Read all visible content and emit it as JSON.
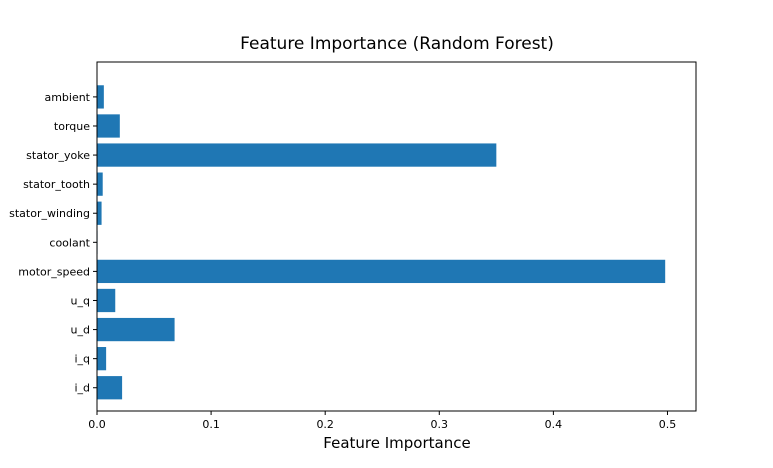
{
  "chart_data": {
    "type": "bar",
    "orientation": "horizontal",
    "title": "Feature Importance (Random Forest)",
    "xlabel": "Feature Importance",
    "ylabel": "",
    "categories": [
      "i_d",
      "i_q",
      "u_d",
      "u_q",
      "motor_speed",
      "coolant",
      "stator_winding",
      "stator_tooth",
      "stator_yoke",
      "torque",
      "ambient"
    ],
    "values": [
      0.022,
      0.008,
      0.068,
      0.016,
      0.498,
      0.0005,
      0.004,
      0.005,
      0.35,
      0.02,
      0.006
    ],
    "xlim": [
      0.0,
      0.525
    ],
    "xticks": [
      "0.0",
      "0.1",
      "0.2",
      "0.3",
      "0.4",
      "0.5"
    ],
    "bar_color": "#1f77b4",
    "grid": false,
    "legend": "none"
  }
}
